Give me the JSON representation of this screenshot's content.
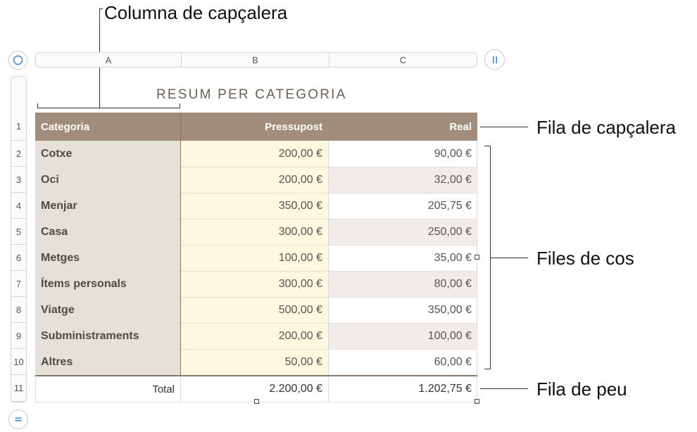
{
  "callouts": {
    "header_column": "Columna de capçalera",
    "header_row": "Fila de capçalera",
    "body_rows": "Files de cos",
    "footer_row": "Fila de peu"
  },
  "columns": [
    "A",
    "B",
    "C"
  ],
  "row_numbers": [
    "1",
    "2",
    "3",
    "4",
    "5",
    "6",
    "7",
    "8",
    "9",
    "10",
    "11"
  ],
  "table": {
    "title": "RESUM PER CATEGORIA",
    "headers": [
      "Categoria",
      "Pressupost",
      "Real"
    ],
    "rows": [
      [
        "Cotxe",
        "200,00 €",
        "90,00 €"
      ],
      [
        "Oci",
        "200,00 €",
        "32,00 €"
      ],
      [
        "Menjar",
        "350,00 €",
        "205,75 €"
      ],
      [
        "Casa",
        "300,00 €",
        "250,00 €"
      ],
      [
        "Metges",
        "100,00 €",
        "35,00 €"
      ],
      [
        "Ítems personals",
        "300,00 €",
        "80,00 €"
      ],
      [
        "Viatge",
        "500,00 €",
        "350,00 €"
      ],
      [
        "Subministraments",
        "200,00 €",
        "100,00 €"
      ],
      [
        "Altres",
        "50,00 €",
        "60,00 €"
      ]
    ],
    "footer": [
      "Total",
      "2.200,00 €",
      "1.202,75 €"
    ]
  },
  "icons": {
    "select_table": "circle-icon",
    "column_handle": "pause-bars-icon",
    "row_handle": "equals-icon"
  },
  "colors": {
    "header_bg": "#a28d7c",
    "header_column_bg": "#e6e0da",
    "budget_column_bg": "#fdf8df",
    "alt_row_bg": "#f1ece8",
    "title_color": "#6b5e52"
  }
}
